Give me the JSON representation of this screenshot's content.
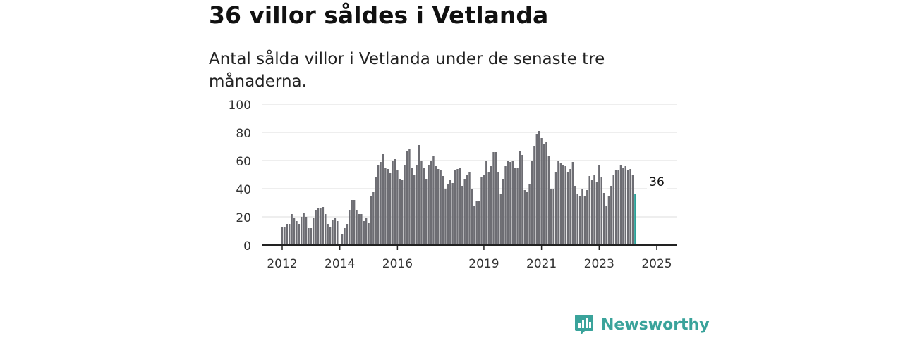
{
  "title": "36 villor såldes i Vetlanda",
  "subtitle": "Antal sålda villor i Vetlanda under de senaste tre månaderna.",
  "brand": {
    "name": "Newsworthy",
    "logo_icon": "bar-chart-speech-bubble-icon",
    "color": "#3aa39b"
  },
  "colors": {
    "bar": "#6d6d73",
    "highlight": "#2aa198",
    "grid": "#dddddd",
    "axis": "#222222"
  },
  "chart_data": {
    "type": "bar",
    "title": "36 villor såldes i Vetlanda",
    "subtitle": "Antal sålda villor i Vetlanda under de senaste tre månaderna.",
    "xlabel": "",
    "ylabel": "",
    "ylim": [
      0,
      100
    ],
    "yticks": [
      0,
      20,
      40,
      60,
      80,
      100
    ],
    "grid": "horizontal",
    "x_start": "2012-01",
    "x_end": "2025-01",
    "xtick_labels": [
      {
        "label": "2012",
        "x": "2012-01"
      },
      {
        "label": "2014",
        "x": "2014-01"
      },
      {
        "label": "2016",
        "x": "2016-01"
      },
      {
        "label": "2019",
        "x": "2019-01"
      },
      {
        "label": "2021",
        "x": "2021-01"
      },
      {
        "label": "2023",
        "x": "2023-01"
      },
      {
        "label": "2025",
        "x": "2025-01"
      }
    ],
    "values": [
      13,
      13,
      15,
      15,
      22,
      19,
      17,
      15,
      20,
      23,
      20,
      12,
      12,
      19,
      25,
      26,
      26,
      27,
      22,
      15,
      13,
      18,
      19,
      17,
      0,
      8,
      12,
      15,
      25,
      32,
      32,
      25,
      22,
      22,
      17,
      19,
      16,
      35,
      38,
      48,
      57,
      59,
      65,
      55,
      54,
      51,
      60,
      61,
      53,
      47,
      46,
      57,
      67,
      68,
      55,
      50,
      57,
      71,
      60,
      55,
      47,
      57,
      60,
      63,
      56,
      54,
      53,
      49,
      40,
      43,
      46,
      44,
      53,
      54,
      55,
      42,
      47,
      50,
      52,
      40,
      28,
      31,
      31,
      48,
      50,
      60,
      52,
      56,
      66,
      66,
      52,
      36,
      47,
      56,
      60,
      59,
      60,
      55,
      55,
      67,
      64,
      39,
      38,
      43,
      60,
      70,
      79,
      81,
      76,
      72,
      73,
      63,
      40,
      40,
      52,
      60,
      58,
      57,
      56,
      52,
      54,
      59,
      42,
      36,
      35,
      40,
      35,
      39,
      49,
      46,
      50,
      45,
      57,
      48,
      37,
      28,
      35,
      42,
      50,
      53,
      53,
      57,
      55,
      56,
      53,
      54,
      50,
      36
    ],
    "highlight": {
      "x": "2025-01",
      "value": 36,
      "label": "36"
    }
  }
}
